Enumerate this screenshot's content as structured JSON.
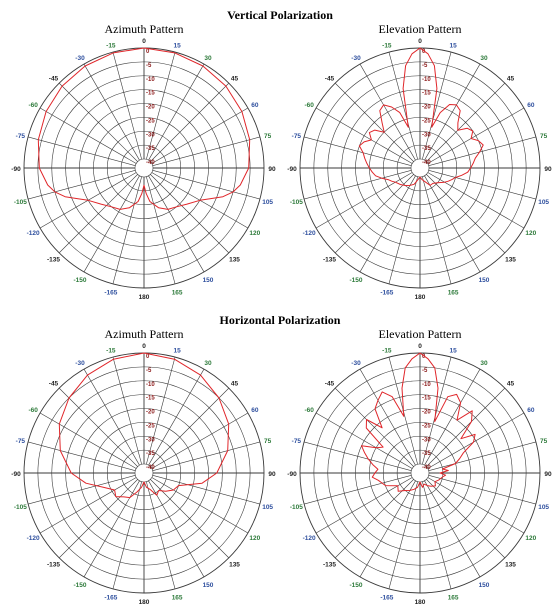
{
  "sections": [
    {
      "title": "Vertical Polarization"
    },
    {
      "title": "Horizontal Polarization"
    }
  ],
  "colors": {
    "pattern": "#e0262a",
    "grid": "#3a3a3a",
    "angle_label": "#222222",
    "angle_label_alt": "#2e4f9e",
    "angle_label_green": "#2d7a3a",
    "db_label": "#8c1a1a"
  },
  "chart_data": [
    {
      "section": "Vertical Polarization",
      "title": "Azimuth Pattern",
      "type": "polar",
      "angle_labels": [
        "0",
        "15",
        "30",
        "45",
        "60",
        "75",
        "90",
        "105",
        "120",
        "135",
        "150",
        "165",
        "180",
        "-165",
        "-150",
        "-135",
        "-120",
        "-105",
        "-90",
        "-75",
        "-60",
        "-45",
        "-30",
        "-15"
      ],
      "radial_labels": [
        "0",
        "-5",
        "-10",
        "-15",
        "-20",
        "-25",
        "-30",
        "-35",
        "-40"
      ],
      "r_range_db": [
        -40,
        0
      ],
      "series": [
        {
          "angles_deg": [
            0,
            15,
            30,
            45,
            60,
            75,
            90,
            100,
            105,
            110,
            115,
            120,
            130,
            140,
            150,
            160,
            170,
            175,
            180,
            -175,
            -170,
            -160,
            -150,
            -140,
            -130,
            -120,
            -115,
            -110,
            -105,
            -100,
            -90,
            -75,
            -60,
            -45,
            -30,
            -15,
            0
          ],
          "values_db": [
            0,
            -0.3,
            -0.8,
            -1.5,
            -2.5,
            -3.8,
            -5.5,
            -8,
            -10,
            -13,
            -17,
            -20,
            -23,
            -25,
            -26,
            -28,
            -31,
            -34,
            -37,
            -34,
            -31,
            -28,
            -26,
            -25,
            -23,
            -20,
            -17,
            -13,
            -10,
            -8,
            -5.5,
            -3.8,
            -2.5,
            -1.5,
            -0.8,
            -0.3,
            0
          ]
        }
      ]
    },
    {
      "section": "Vertical Polarization",
      "title": "Elevation Pattern",
      "type": "polar",
      "angle_labels": [
        "0",
        "15",
        "30",
        "45",
        "60",
        "75",
        "90",
        "105",
        "120",
        "135",
        "150",
        "165",
        "180",
        "-165",
        "-150",
        "-135",
        "-120",
        "-105",
        "-90",
        "-75",
        "-60",
        "-45",
        "-30",
        "-15"
      ],
      "radial_labels": [
        "0",
        "-5",
        "-10",
        "-15",
        "-20",
        "-25",
        "-30",
        "-35",
        "-40"
      ],
      "r_range_db": [
        -40,
        0
      ],
      "series": [
        {
          "angles_deg": [
            0,
            4,
            8,
            12,
            16,
            20,
            25,
            30,
            35,
            40,
            45,
            50,
            55,
            60,
            65,
            70,
            75,
            80,
            85,
            90,
            95,
            100,
            105,
            110,
            115,
            120,
            130,
            140,
            150,
            160,
            170,
            180,
            -170,
            -160,
            -150,
            -140,
            -130,
            -120,
            -115,
            -110,
            -105,
            -100,
            -95,
            -90,
            -85,
            -80,
            -75,
            -70,
            -65,
            -60,
            -55,
            -50,
            -45,
            -40,
            -35,
            -30,
            -25,
            -20,
            -16,
            -12,
            -8,
            -4,
            0
          ],
          "values_db": [
            0,
            -2,
            -6,
            -14,
            -28,
            -22,
            -18,
            -17,
            -18,
            -22,
            -24,
            -21,
            -20,
            -22,
            -20,
            -19,
            -21,
            -23,
            -24,
            -25,
            -26,
            -28,
            -30,
            -31,
            -32,
            -33,
            -35,
            -36,
            -36,
            -38,
            -39,
            -40,
            -39,
            -37,
            -36,
            -35,
            -34,
            -33,
            -32,
            -31,
            -29,
            -27,
            -26,
            -25,
            -24,
            -23,
            -22,
            -20,
            -21,
            -23,
            -21,
            -22,
            -25,
            -22,
            -18,
            -17,
            -19,
            -22,
            -28,
            -14,
            -6,
            -2,
            0
          ]
        }
      ]
    },
    {
      "section": "Horizontal Polarization",
      "title": "Azimuth Pattern",
      "type": "polar",
      "angle_labels": [
        "0",
        "15",
        "30",
        "45",
        "60",
        "75",
        "90",
        "105",
        "120",
        "135",
        "150",
        "165",
        "180",
        "-165",
        "-150",
        "-135",
        "-120",
        "-105",
        "-90",
        "-75",
        "-60",
        "-45",
        "-30",
        "-15"
      ],
      "radial_labels": [
        "0",
        "-5",
        "-10",
        "-15",
        "-20",
        "-25",
        "-30",
        "-35",
        "-40"
      ],
      "r_range_db": [
        -40,
        0
      ],
      "series": [
        {
          "angles_deg": [
            0,
            15,
            30,
            45,
            60,
            75,
            90,
            100,
            110,
            120,
            130,
            140,
            150,
            160,
            170,
            180,
            -170,
            -160,
            -150,
            -140,
            -130,
            -120,
            -110,
            -100,
            -90,
            -75,
            -60,
            -45,
            -30,
            -15,
            0
          ],
          "values_db": [
            0,
            -0.8,
            -2.5,
            -5,
            -8,
            -12,
            -17,
            -22,
            -30,
            -31,
            -33,
            -35,
            -34,
            -37,
            -38,
            -40,
            -38,
            -36,
            -33,
            -32,
            -30,
            -31,
            -28,
            -22,
            -17,
            -12,
            -8,
            -5,
            -2.5,
            -0.8,
            0
          ]
        }
      ]
    },
    {
      "section": "Horizontal Polarization",
      "title": "Elevation Pattern",
      "type": "polar",
      "angle_labels": [
        "0",
        "15",
        "30",
        "45",
        "60",
        "75",
        "90",
        "105",
        "120",
        "135",
        "150",
        "165",
        "180",
        "-165",
        "-150",
        "-135",
        "-120",
        "-105",
        "-90",
        "-75",
        "-60",
        "-45",
        "-30",
        "-15"
      ],
      "radial_labels": [
        "0",
        "-5",
        "-10",
        "-15",
        "-20",
        "-25",
        "-30",
        "-35",
        "-40"
      ],
      "r_range_db": [
        -40,
        0
      ],
      "series": [
        {
          "angles_deg": [
            0,
            4,
            8,
            12,
            16,
            20,
            25,
            30,
            35,
            40,
            45,
            50,
            55,
            60,
            65,
            70,
            75,
            80,
            85,
            90,
            95,
            100,
            110,
            120,
            130,
            140,
            150,
            160,
            170,
            180,
            -170,
            -160,
            -150,
            -140,
            -130,
            -120,
            -110,
            -100,
            -95,
            -90,
            -85,
            -80,
            -75,
            -70,
            -65,
            -60,
            -55,
            -50,
            -45,
            -40,
            -35,
            -30,
            -25,
            -20,
            -16,
            -12,
            -8,
            -4,
            0
          ],
          "values_db": [
            0,
            -2,
            -5,
            -12,
            -24,
            -14,
            -12,
            -14,
            -20,
            -14,
            -17,
            -24,
            -19,
            -21,
            -26,
            -28,
            -30,
            -35,
            -33,
            -36,
            -34,
            -35,
            -36,
            -37,
            -36,
            -37,
            -38,
            -39,
            -38,
            -40,
            -38,
            -37,
            -36,
            -35,
            -33,
            -34,
            -30,
            -28,
            -26,
            -27,
            -28,
            -26,
            -24,
            -22,
            -20,
            -25,
            -27,
            -18,
            -16,
            -22,
            -15,
            -13,
            -11,
            -14,
            -22,
            -12,
            -5,
            -2,
            0
          ]
        }
      ]
    }
  ]
}
